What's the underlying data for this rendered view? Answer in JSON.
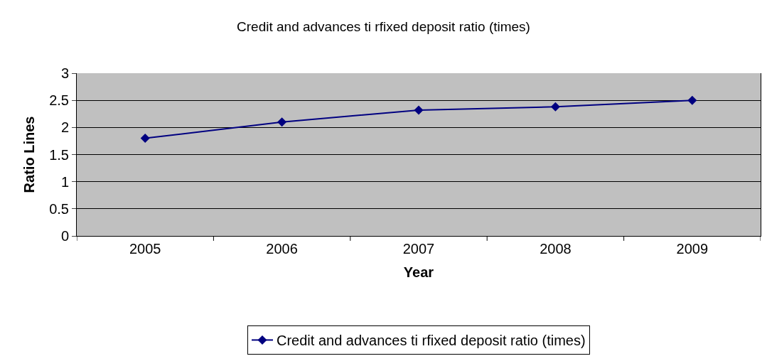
{
  "chart_data": {
    "type": "line",
    "title": "Credit and advances ti rfixed deposit ratio (times)",
    "xlabel": "Year",
    "ylabel": "Ratio Lines",
    "categories": [
      "2005",
      "2006",
      "2007",
      "2008",
      "2009"
    ],
    "series": [
      {
        "name": "Credit and advances ti rfixed deposit ratio (times)",
        "color": "#000080",
        "values": [
          1.8,
          2.1,
          2.32,
          2.38,
          2.5
        ]
      }
    ],
    "ylim": [
      0,
      3
    ],
    "yticks": [
      0,
      0.5,
      1,
      1.5,
      2,
      2.5,
      3
    ],
    "grid": "y",
    "legend": "bottom",
    "marker": "diamond",
    "line_style": "solid"
  }
}
